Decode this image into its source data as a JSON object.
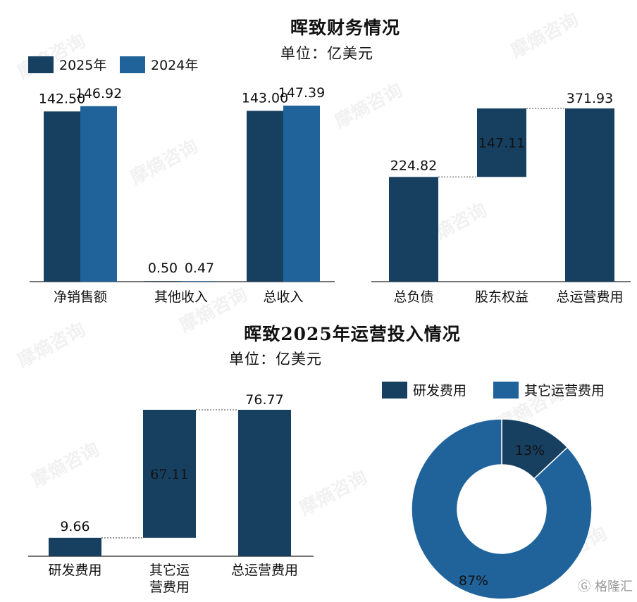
{
  "page": {
    "title1": "晖致财务情况",
    "unit1": "单位：亿美元",
    "title2": "晖致2025年运营投入情况",
    "unit2": "单位：亿美元",
    "watermark": "摩熵咨询",
    "brand": "格隆汇"
  },
  "colors": {
    "dark": "#173F5F",
    "mid": "#20639B"
  },
  "chart_data": [
    {
      "type": "bar",
      "categories": [
        "净销售额",
        "其他收入",
        "总收入"
      ],
      "series": [
        {
          "name": "2025年",
          "values": [
            142.5,
            0.5,
            143.0
          ]
        },
        {
          "name": "2024年",
          "values": [
            146.92,
            0.47,
            147.39
          ]
        }
      ],
      "value_labels": [
        [
          "142.50",
          "0.50",
          "143.00"
        ],
        [
          "146.92",
          "0.47",
          "147.39"
        ]
      ],
      "legend_position": "top-left",
      "grid": false
    },
    {
      "type": "bar",
      "subtype": "waterfall",
      "categories": [
        "总负债",
        "股东权益",
        "总运营费用"
      ],
      "values": [
        224.82,
        147.11,
        371.93
      ],
      "value_labels": [
        "224.82",
        "147.11",
        "371.93"
      ],
      "grid": false
    },
    {
      "type": "bar",
      "subtype": "waterfall",
      "categories": [
        "研发费用",
        "其它运营费用",
        "总运营费用"
      ],
      "category_lines": [
        [
          "研发费用"
        ],
        [
          "其它运",
          "营费用"
        ],
        [
          "总运营费用"
        ]
      ],
      "values": [
        9.66,
        67.11,
        76.77
      ],
      "value_labels": [
        "9.66",
        "67.11",
        "76.77"
      ],
      "grid": false
    },
    {
      "type": "pie",
      "subtype": "donut",
      "labels": [
        "研发费用",
        "其它运营费用"
      ],
      "values": [
        13,
        87
      ],
      "value_labels": [
        "13%",
        "87%"
      ],
      "legend_position": "top"
    }
  ]
}
